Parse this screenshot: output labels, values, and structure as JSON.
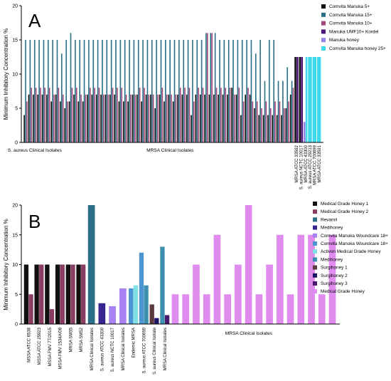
{
  "chart_data": [
    {
      "type": "bar",
      "panel_label": "A",
      "ylabel": "Minimum Inhibitory Concentration %",
      "ylim": [
        0,
        20
      ],
      "yticks": [
        0,
        5,
        10,
        15,
        20
      ],
      "grid": false,
      "legend_position": "top-right",
      "group_labels": [
        {
          "text": "S. aureus Clinical Isolates",
          "start": 0,
          "end": 4
        },
        {
          "text": "MRSA Clinical Isolates",
          "start": 5,
          "end": 59
        }
      ],
      "categories": [
        "",
        "",
        "",
        "",
        "",
        "",
        "",
        "",
        "",
        "",
        "",
        "",
        "",
        "",
        "",
        "",
        "",
        "",
        "",
        "",
        "",
        "",
        "",
        "",
        "",
        "",
        "",
        "",
        "",
        "",
        "",
        "",
        "",
        "",
        "",
        "",
        "",
        "",
        "",
        "",
        "",
        "",
        "",
        "",
        "",
        "",
        "",
        "",
        "",
        "",
        "",
        "",
        "",
        "",
        "",
        "",
        "",
        "",
        "",
        "",
        "MRSA ATCC 33592",
        "S. aureus NCTC 10017",
        "MRSA ATCC 43300",
        "S. aureus ATCC 29213",
        "MRSA ATCC 700699",
        "MRSA ATCC 33591"
      ],
      "series": [
        {
          "name": "Comvita Manuka 5+",
          "color": "#111111",
          "values": [
            4,
            7,
            7,
            7,
            7,
            7,
            6,
            7,
            6,
            5,
            6,
            7,
            6,
            6,
            7,
            7,
            7,
            7,
            7,
            7,
            7,
            6,
            6,
            6,
            7,
            7,
            6,
            7,
            7,
            5,
            7,
            6,
            7,
            6,
            7,
            7,
            7,
            4,
            7,
            7,
            7,
            7,
            7,
            7,
            7,
            7,
            8,
            7,
            4,
            7,
            7,
            5,
            4,
            4,
            4,
            4,
            4,
            4,
            5,
            7,
            12.5,
            12.5,
            0,
            0,
            0,
            0
          ]
        },
        {
          "name": "Comvita Manuka 15+",
          "color": "#2a6f86",
          "values": [
            15,
            15,
            15,
            15,
            15,
            15,
            15,
            15,
            13,
            15,
            16,
            15,
            15,
            15,
            15,
            15,
            15,
            15,
            15,
            15,
            15,
            15,
            15,
            15,
            15,
            15,
            15,
            15,
            15,
            15,
            15,
            15,
            15,
            15,
            15,
            15,
            15,
            15,
            15,
            15,
            16,
            16,
            16,
            15,
            15,
            15,
            15,
            15,
            15,
            15,
            15,
            13,
            15,
            9,
            15,
            15,
            9,
            9,
            11,
            9,
            0,
            0,
            0,
            0,
            0,
            0
          ]
        },
        {
          "name": "Comvita Manuka 10+",
          "color": "#a2487a",
          "values": [
            6,
            8,
            8,
            8,
            8,
            8,
            7,
            8,
            7,
            6,
            8,
            8,
            7,
            7,
            8,
            8,
            8,
            7,
            7,
            8,
            8,
            8,
            7,
            7,
            7,
            8,
            8,
            7,
            7,
            7,
            8,
            7,
            7,
            7,
            8,
            8,
            8,
            6,
            8,
            8,
            16,
            16,
            8,
            8,
            8,
            8,
            7,
            8,
            6,
            8,
            6,
            6,
            5,
            6,
            5,
            6,
            6,
            5,
            6,
            8,
            0,
            0,
            0,
            0,
            0,
            0
          ]
        },
        {
          "name": "Manuka UMF10+ Kordel",
          "color": "#4d1478",
          "values": [
            0,
            0,
            0,
            0,
            0,
            0,
            0,
            0,
            0,
            0,
            0,
            0,
            0,
            0,
            0,
            0,
            0,
            0,
            0,
            0,
            0,
            0,
            0,
            0,
            0,
            0,
            0,
            0,
            0,
            0,
            0,
            0,
            0,
            0,
            0,
            0,
            0,
            0,
            0,
            0,
            0,
            0,
            0,
            0,
            0,
            0,
            0,
            0,
            0,
            0,
            0,
            0,
            0,
            0,
            0,
            0,
            0,
            0,
            0,
            0,
            12.5,
            12.5,
            0,
            0,
            0,
            0
          ]
        },
        {
          "name": "Manuka honey",
          "color": "#9b7fe6",
          "values": [
            0,
            0,
            0,
            0,
            0,
            0,
            0,
            0,
            0,
            0,
            0,
            0,
            0,
            0,
            0,
            0,
            0,
            0,
            0,
            0,
            0,
            0,
            0,
            0,
            0,
            0,
            0,
            0,
            0,
            0,
            0,
            0,
            0,
            0,
            0,
            0,
            0,
            0,
            0,
            0,
            0,
            0,
            0,
            0,
            0,
            0,
            0,
            0,
            0,
            0,
            0,
            0,
            0,
            0,
            0,
            0,
            0,
            0,
            0,
            0,
            0,
            0,
            3,
            0,
            0,
            0
          ]
        },
        {
          "name": "Comvita Manuka honey 25+",
          "color": "#40d8ec",
          "values": [
            0,
            0,
            0,
            0,
            0,
            0,
            0,
            0,
            0,
            0,
            0,
            0,
            0,
            0,
            0,
            0,
            0,
            0,
            0,
            0,
            0,
            0,
            0,
            0,
            0,
            0,
            0,
            0,
            0,
            0,
            0,
            0,
            0,
            0,
            0,
            0,
            0,
            0,
            0,
            0,
            0,
            0,
            0,
            0,
            0,
            0,
            0,
            0,
            0,
            0,
            0,
            0,
            0,
            0,
            0,
            0,
            0,
            0,
            0,
            0,
            0,
            0,
            12.5,
            12.5,
            12.5,
            12.5
          ]
        }
      ]
    },
    {
      "type": "bar",
      "panel_label": "B",
      "ylabel": "Minimum Inhibitory Concentration %",
      "ylim": [
        0,
        20
      ],
      "yticks": [
        0,
        5,
        10,
        15,
        20
      ],
      "grid": false,
      "legend_position": "top-right",
      "group_labels": [
        {
          "text": "MRSA Clinical Isolates",
          "start": 13,
          "end": 29
        }
      ],
      "categories": [
        "MSSA ATCC 6538",
        "MSSA ATCC 25923",
        "MSSA FMV 77/2015",
        "MSSA FMV 1534A/08",
        "MRSA SM35",
        "MRSA SM52",
        "MRSA Clinical Isolates",
        "S. aureus ATCC 43300",
        "S. aureus NCTC 10017",
        "MRSA Clinical Isolates",
        "Endemic MRSA",
        "S. aureus ATCC 700699",
        "S. aureus Clinical Isolate",
        "MRSA Clinical Isolates",
        "",
        "",
        "",
        "",
        "",
        "",
        "",
        "",
        "",
        "",
        "",
        "",
        "",
        "",
        "",
        ""
      ],
      "series": [
        {
          "name": "Medical Grade Honey 1",
          "color": "#111111",
          "values": [
            10,
            10,
            10,
            10,
            10,
            10,
            0,
            0,
            0,
            0,
            0,
            0,
            0,
            0,
            0,
            0,
            0,
            0,
            0,
            0,
            0,
            0,
            0,
            0,
            0,
            0,
            0,
            0,
            0,
            0
          ]
        },
        {
          "name": "Medical Grade Honey 2",
          "color": "#8a3d62",
          "values": [
            5,
            10,
            2.5,
            10,
            10,
            10,
            0,
            0,
            0,
            0,
            0,
            0,
            0,
            0,
            0,
            0,
            0,
            0,
            0,
            0,
            0,
            0,
            0,
            0,
            0,
            0,
            0,
            0,
            0,
            0
          ]
        },
        {
          "name": "Revamil",
          "color": "#2a6f86",
          "values": [
            0,
            0,
            0,
            0,
            0,
            0,
            20,
            0,
            0,
            0,
            0,
            0,
            0,
            0,
            0,
            0,
            0,
            0,
            0,
            0,
            0,
            0,
            0,
            0,
            0,
            0,
            0,
            0,
            0,
            0
          ]
        },
        {
          "name": "Medihoney",
          "color": "#3a2590",
          "values": [
            0,
            0,
            0,
            0,
            0,
            0,
            0,
            3.5,
            0,
            0,
            0,
            0,
            0,
            0,
            0,
            0,
            0,
            0,
            0,
            0,
            0,
            0,
            0,
            0,
            0,
            0,
            0,
            0,
            0,
            0
          ]
        },
        {
          "name": "Comvita Manuka Woundcare 18+",
          "color": "#a882f0",
          "values": [
            0,
            0,
            0,
            0,
            0,
            0,
            0,
            0,
            3,
            6,
            0,
            0,
            0,
            0,
            0,
            0,
            0,
            0,
            0,
            0,
            0,
            0,
            0,
            0,
            0,
            0,
            0,
            0,
            0,
            0
          ]
        },
        {
          "name": "Comvita Manuka Woundcare 18+",
          "color": "#4d95d0",
          "values": [
            0,
            0,
            0,
            0,
            0,
            0,
            0,
            0,
            0,
            0,
            6,
            12,
            0,
            0,
            0,
            0,
            0,
            0,
            0,
            0,
            0,
            0,
            0,
            0,
            0,
            0,
            0,
            0,
            0,
            0
          ]
        },
        {
          "name": "Activon Medical Grade Honey",
          "color": "#7fe0e6",
          "values": [
            0,
            0,
            0,
            0,
            0,
            0,
            0,
            0,
            0,
            0,
            6.5,
            0,
            0,
            0,
            0,
            0,
            0,
            0,
            0,
            0,
            0,
            0,
            0,
            0,
            0,
            0,
            0,
            0,
            0,
            0
          ]
        },
        {
          "name": "Medihoney",
          "color": "#3c8fb0",
          "values": [
            0,
            0,
            0,
            0,
            0,
            0,
            0,
            0,
            0,
            0,
            0,
            6.5,
            0,
            13,
            0,
            0,
            0,
            0,
            0,
            0,
            0,
            0,
            0,
            0,
            0,
            0,
            0,
            0,
            0,
            0
          ]
        },
        {
          "name": "Surgihoney 1",
          "color": "#5a3a3e",
          "values": [
            0,
            0,
            0,
            0,
            0,
            0,
            0,
            0,
            0,
            0,
            0,
            0,
            3.3,
            0,
            0,
            0,
            0,
            0,
            0,
            0,
            0,
            0,
            0,
            0,
            0,
            0,
            0,
            0,
            0,
            0
          ]
        },
        {
          "name": "Surgihoney 2",
          "color": "#1d1466",
          "values": [
            0,
            0,
            0,
            0,
            0,
            0,
            0,
            0,
            0,
            0,
            0,
            0,
            1,
            0,
            0,
            0,
            0,
            0,
            0,
            0,
            0,
            0,
            0,
            0,
            0,
            0,
            0,
            0,
            0,
            0
          ]
        },
        {
          "name": "Surgihoney 3",
          "color": "#4a1a6e",
          "values": [
            0,
            0,
            0,
            0,
            0,
            0,
            0,
            0,
            0,
            0,
            0,
            0,
            0,
            1.5,
            0,
            0,
            0,
            0,
            0,
            0,
            0,
            0,
            0,
            0,
            0,
            0,
            0,
            0,
            0,
            0
          ]
        },
        {
          "name": "Medical Grade Honey",
          "color": "#e08cef",
          "values": [
            0,
            0,
            0,
            0,
            0,
            0,
            0,
            0,
            0,
            0,
            0,
            0,
            0,
            0,
            5,
            5,
            10,
            5,
            15,
            5,
            10,
            20,
            5,
            10,
            15,
            5,
            15,
            15,
            5,
            15
          ]
        }
      ]
    }
  ]
}
